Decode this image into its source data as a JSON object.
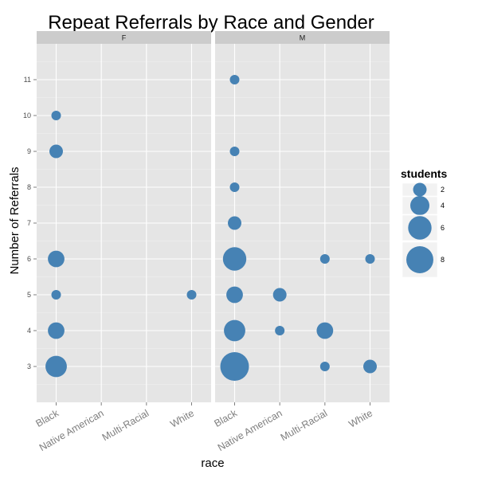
{
  "chart_data": {
    "type": "scatter",
    "title": "Repeat Referrals by Race and Gender",
    "xlabel": "race",
    "ylabel": "Number of Referrals",
    "categories": [
      "Black",
      "Native American",
      "Multi-Racial",
      "White"
    ],
    "y_ticks": [
      "3",
      "4",
      "5",
      "6",
      "7",
      "8",
      "9",
      "10",
      "11"
    ],
    "ylim": [
      2,
      12
    ],
    "grid": true,
    "point_color": "#4682B4",
    "panel_color": "#E5E5E5",
    "strip_color": "#CCCCCC",
    "facets": [
      {
        "label": "F",
        "points": [
          {
            "race": "Black",
            "referrals": 3,
            "students": 5
          },
          {
            "race": "Black",
            "referrals": 4,
            "students": 3
          },
          {
            "race": "Black",
            "referrals": 5,
            "students": 1
          },
          {
            "race": "Black",
            "referrals": 6,
            "students": 3
          },
          {
            "race": "Black",
            "referrals": 9,
            "students": 2
          },
          {
            "race": "Black",
            "referrals": 10,
            "students": 1
          },
          {
            "race": "White",
            "referrals": 5,
            "students": 1
          }
        ]
      },
      {
        "label": "M",
        "points": [
          {
            "race": "Black",
            "referrals": 3,
            "students": 9
          },
          {
            "race": "Black",
            "referrals": 4,
            "students": 5
          },
          {
            "race": "Black",
            "referrals": 5,
            "students": 3
          },
          {
            "race": "Black",
            "referrals": 6,
            "students": 6
          },
          {
            "race": "Black",
            "referrals": 7,
            "students": 2
          },
          {
            "race": "Black",
            "referrals": 8,
            "students": 1
          },
          {
            "race": "Black",
            "referrals": 9,
            "students": 1
          },
          {
            "race": "Black",
            "referrals": 11,
            "students": 1
          },
          {
            "race": "Native American",
            "referrals": 4,
            "students": 1
          },
          {
            "race": "Native American",
            "referrals": 5,
            "students": 2
          },
          {
            "race": "Multi-Racial",
            "referrals": 3,
            "students": 1
          },
          {
            "race": "Multi-Racial",
            "referrals": 4,
            "students": 3
          },
          {
            "race": "Multi-Racial",
            "referrals": 6,
            "students": 1
          },
          {
            "race": "White",
            "referrals": 3,
            "students": 2
          },
          {
            "race": "White",
            "referrals": 6,
            "students": 1
          }
        ]
      }
    ],
    "legend": {
      "title": "students",
      "placement": "right",
      "entries": [
        {
          "label": "2",
          "value": 2
        },
        {
          "label": "4",
          "value": 4
        },
        {
          "label": "6",
          "value": 6
        },
        {
          "label": "8",
          "value": 8
        }
      ]
    }
  }
}
